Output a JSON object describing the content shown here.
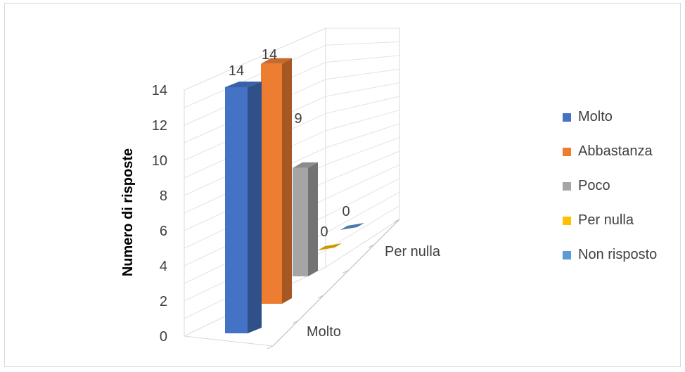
{
  "chart_data": {
    "type": "bar",
    "projection": "3d-perspective",
    "ylabel": "Numero di risposte",
    "ylim": [
      0,
      14
    ],
    "y_ticks": [
      0,
      2,
      4,
      6,
      8,
      10,
      12,
      14
    ],
    "category_axis_labels": [
      "Molto",
      "Per nulla"
    ],
    "series": [
      {
        "name": "Molto",
        "value": 14,
        "label": "14",
        "color": "#4472C4"
      },
      {
        "name": "Abbastanza",
        "value": 14,
        "label": "14",
        "color": "#ED7D31"
      },
      {
        "name": "Poco",
        "value": 9,
        "label": "9",
        "color": "#A5A5A5"
      },
      {
        "name": "Per nulla",
        "value": 0,
        "label": "0",
        "color": "#FFC000"
      },
      {
        "name": "Non risposto",
        "value": 0,
        "label": "0",
        "color": "#5B9BD5"
      }
    ],
    "grid": true,
    "legend_position": "right"
  }
}
